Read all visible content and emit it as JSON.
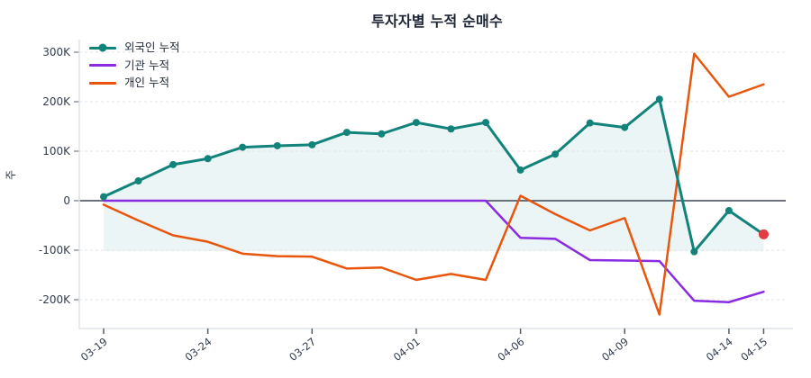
{
  "title": "투자자별 누적 순매수",
  "y_axis_label": "주",
  "chart_data": {
    "type": "line",
    "x": [
      "03-19",
      "03-20",
      "03-23",
      "03-24",
      "03-25",
      "03-26",
      "03-27",
      "03-30",
      "03-31",
      "04-01",
      "04-02",
      "04-03",
      "04-06",
      "04-07",
      "04-08",
      "04-09",
      "04-10",
      "04-13",
      "04-14",
      "04-15"
    ],
    "x_labeled_tick_indices": [
      0,
      3,
      6,
      9,
      12,
      15,
      18,
      19
    ],
    "y_ticks": [
      {
        "value": 300,
        "label": "300K"
      },
      {
        "value": 200,
        "label": "200K"
      },
      {
        "value": 100,
        "label": "100K"
      },
      {
        "value": 0,
        "label": "0"
      },
      {
        "value": -100,
        "label": "-100K"
      },
      {
        "value": -200,
        "label": "-200K"
      }
    ],
    "ylim": [
      -255,
      325
    ],
    "values_unit": "K",
    "grid": "horizontal-dashed",
    "zero_line": true,
    "legend_position": "top-left",
    "series": [
      {
        "name": "외국인 누적",
        "color": "#11837a",
        "markers": true,
        "area_fill": "rgba(17,131,122,0.08)",
        "area_baseline": -102,
        "values": [
          8,
          40,
          73,
          85,
          108,
          111,
          113,
          138,
          135,
          158,
          145,
          158,
          62,
          94,
          157,
          148,
          205,
          -103,
          -20,
          -68
        ]
      },
      {
        "name": "기관 누적",
        "color": "#8a2be2",
        "markers": false,
        "values": [
          0,
          0,
          0,
          0,
          0,
          0,
          0,
          0,
          0,
          0,
          0,
          0,
          -75,
          -77,
          -120,
          -121,
          -122,
          -202,
          -205,
          -184
        ]
      },
      {
        "name": "개인 누적",
        "color": "#e8560d",
        "markers": false,
        "values": [
          -8,
          -40,
          -70,
          -83,
          -107,
          -112,
          -113,
          -137,
          -135,
          -160,
          -148,
          -160,
          10,
          -27,
          -60,
          -35,
          -230,
          297,
          210,
          235
        ]
      }
    ],
    "end_marker": {
      "series_index": 0,
      "point_index": 19,
      "color": "#e23b41"
    }
  },
  "style_colors": {
    "title_text": "#1c2433",
    "tick_text": "#333d4e",
    "gridline": "#e3e3e3",
    "zero_line": "#3d4452",
    "spine": "#dfe3e8",
    "tick_mark": "#555e6e"
  }
}
